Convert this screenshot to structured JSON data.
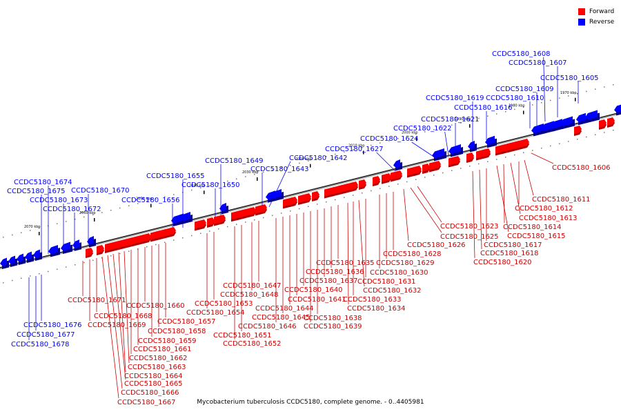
{
  "legend": {
    "forward": {
      "label": "Forward",
      "color": "#ff0000"
    },
    "reverse": {
      "label": "Reverse",
      "color": "#0000ff"
    }
  },
  "caption": "Mycobacterium tuberculosis CCDC5180, complete genome. - 0..4405981",
  "scale_labels": [
    "1970 kbp",
    "1980 kbp",
    "1990 kbp",
    "2000 kbp",
    "2010 kbp",
    "2020 kbp",
    "2030 kbp",
    "2040 kbp",
    "2050 kbp",
    "2060 kbp",
    "2070 kbp"
  ],
  "reverse_genes": [
    "CCDC5180_1605",
    "CCDC5180_1607",
    "CCDC5180_1608",
    "CCDC5180_1609",
    "CCDC5180_1610",
    "CCDC5180_1616",
    "CCDC5180_1619",
    "CCDC5180_1621",
    "CCDC5180_1622",
    "CCDC5180_1624",
    "CCDC5180_1627",
    "CCDC5180_1642",
    "CCDC5180_1643",
    "CCDC5180_1649",
    "CCDC5180_1650",
    "CCDC5180_1655",
    "CCDC5180_1656",
    "CCDC5180_1670",
    "CCDC5180_1672",
    "CCDC5180_1673",
    "CCDC5180_1674",
    "CCDC5180_1675",
    "CCDC5180_1676",
    "CCDC5180_1677",
    "CCDC5180_1678"
  ],
  "forward_genes": [
    "CCDC5180_1606",
    "CCDC5180_1611",
    "CCDC5180_1612",
    "CCDC5180_1613",
    "CCDC5180_1614",
    "CCDC5180_1615",
    "CCDC5180_1617",
    "CCDC5180_1618",
    "CCDC5180_1620",
    "CCDC5180_1623",
    "CCDC5180_1625",
    "CCDC5180_1626",
    "CCDC5180_1628",
    "CCDC5180_1629",
    "CCDC5180_1630",
    "CCDC5180_1631",
    "CCDC5180_1632",
    "CCDC5180_1633",
    "CCDC5180_1634",
    "CCDC5180_1635",
    "CCDC5180_1636",
    "CCDC5180_1637",
    "CCDC5180_1638",
    "CCDC5180_1639",
    "CCDC5180_1640",
    "CCDC5180_1641",
    "CCDC5180_1644",
    "CCDC5180_1645",
    "CCDC5180_1646",
    "CCDC5180_1647",
    "CCDC5180_1648",
    "CCDC5180_1651",
    "CCDC5180_1652",
    "CCDC5180_1653",
    "CCDC5180_1654",
    "CCDC5180_1657",
    "CCDC5180_1658",
    "CCDC5180_1659",
    "CCDC5180_1660",
    "CCDC5180_1661",
    "CCDC5180_1662",
    "CCDC5180_1663",
    "CCDC5180_1664",
    "CCDC5180_1665",
    "CCDC5180_1666",
    "CCDC5180_1667",
    "CCDC5180_1668",
    "CCDC5180_1669",
    "CCDC5180_1671"
  ]
}
